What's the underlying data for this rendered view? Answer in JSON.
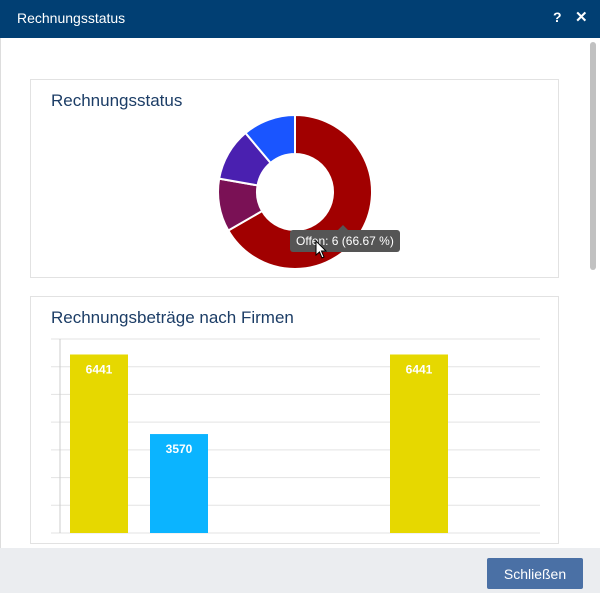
{
  "window": {
    "title": "Rechnungsstatus",
    "help_icon": "question-icon",
    "close_icon": "close-icon"
  },
  "panels": {
    "status_title": "Rechnungsstatus",
    "amounts_title": "Rechnungsbeträge nach Firmen"
  },
  "tooltip": "Offen: 6 (66.67 %)",
  "footer": {
    "close_label": "Schließen"
  },
  "chart_data": [
    {
      "type": "pie",
      "title": "Rechnungsstatus",
      "donut": true,
      "slices": [
        {
          "label": "Offen",
          "value": 6,
          "color": "#a10000"
        },
        {
          "value": 1,
          "color": "#7a1155"
        },
        {
          "value": 1,
          "color": "#4a20b0"
        },
        {
          "value": 1,
          "color": "#1a55ff"
        }
      ]
    },
    {
      "type": "bar",
      "title": "Rechnungsbeträge nach Firmen",
      "ylim": [
        0,
        7000
      ],
      "grid": true,
      "values": [
        6441,
        3570,
        null,
        null,
        6441,
        null
      ],
      "colors": [
        "#e6d800",
        "#0bb4ff",
        null,
        null,
        "#e6d800",
        null
      ],
      "data_labels": [
        "6441",
        "3570",
        "",
        "",
        "6441",
        ""
      ]
    }
  ]
}
